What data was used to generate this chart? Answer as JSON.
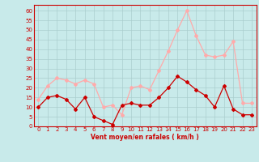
{
  "hours": [
    0,
    1,
    2,
    3,
    4,
    5,
    6,
    7,
    8,
    9,
    10,
    11,
    12,
    13,
    14,
    15,
    16,
    17,
    18,
    19,
    20,
    21,
    22,
    23
  ],
  "wind_avg": [
    10,
    15,
    16,
    14,
    9,
    15,
    5,
    3,
    1,
    11,
    12,
    11,
    11,
    15,
    20,
    26,
    23,
    19,
    16,
    10,
    21,
    9,
    6,
    6
  ],
  "wind_gust": [
    14,
    21,
    25,
    24,
    22,
    24,
    22,
    10,
    11,
    6,
    20,
    21,
    19,
    29,
    39,
    50,
    60,
    47,
    37,
    36,
    37,
    44,
    12,
    12
  ],
  "avg_color": "#cc0000",
  "gust_color": "#ffaaaa",
  "bg_color": "#c8eaea",
  "grid_color": "#aacece",
  "axis_color": "#cc0000",
  "spine_color": "#cc0000",
  "xlabel": "Vent moyen/en rafales ( km/h )",
  "ylim": [
    0,
    63
  ],
  "yticks": [
    0,
    5,
    10,
    15,
    20,
    25,
    30,
    35,
    40,
    45,
    50,
    55,
    60
  ],
  "marker": "D",
  "markersize": 2.0,
  "linewidth": 0.9,
  "tick_fontsize": 5.0,
  "xlabel_fontsize": 5.5
}
